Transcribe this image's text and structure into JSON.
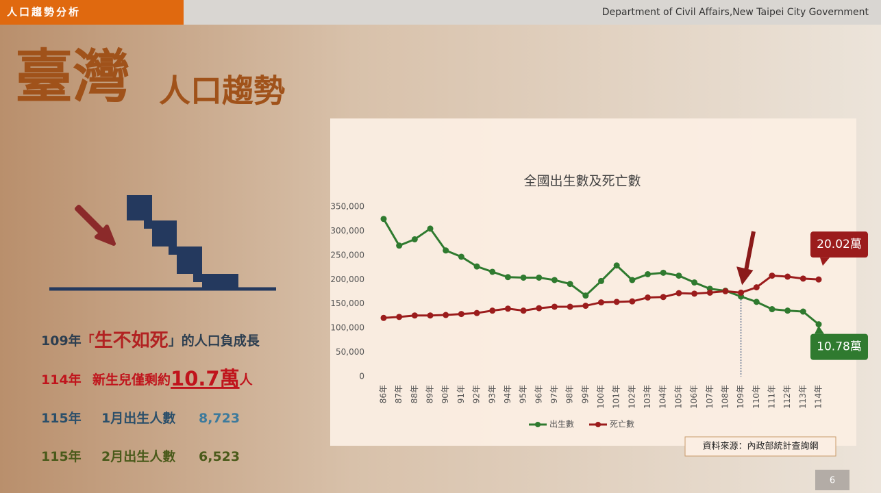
{
  "header": {
    "tag": "人口趨勢分析",
    "organization": "Department of Civil Affairs,New Taipei City Government"
  },
  "title": {
    "main": "臺灣",
    "sub": "人口趨勢"
  },
  "notes": [
    {
      "year": "109年",
      "open": "「",
      "highlight": "生不如死",
      "rest": "」的人口負成長"
    },
    {
      "year": "114年",
      "text": "新生兒僅剩約",
      "highlight": "10.7萬",
      "rest": "人"
    },
    {
      "year": "115年",
      "text": "1月出生人數",
      "number": "8,723"
    },
    {
      "year": "115年",
      "text": "2月出生人數",
      "number": "6,523"
    }
  ],
  "source": "資料來源：內政部統計查詢網",
  "page_number": "6",
  "chart_data": {
    "type": "line",
    "title": "全國出生數及死亡數",
    "categories": [
      "86年",
      "87年",
      "88年",
      "89年",
      "90年",
      "91年",
      "92年",
      "93年",
      "94年",
      "95年",
      "96年",
      "97年",
      "98年",
      "99年",
      "100年",
      "101年",
      "102年",
      "103年",
      "104年",
      "105年",
      "106年",
      "107年",
      "108年",
      "109年",
      "110年",
      "111年",
      "112年",
      "113年",
      "114年"
    ],
    "series": [
      {
        "name": "出生數",
        "color": "#2f7a2f",
        "values": [
          325000,
          270000,
          283000,
          305000,
          260000,
          247000,
          227000,
          216000,
          205000,
          204000,
          204000,
          199000,
          191000,
          167000,
          197000,
          229000,
          199000,
          211000,
          214000,
          208000,
          194000,
          181000,
          177000,
          165000,
          154000,
          139000,
          136000,
          134000,
          107800
        ],
        "value_labels": [
          null,
          null,
          null,
          null,
          null,
          null,
          null,
          null,
          null,
          null,
          null,
          null,
          null,
          null,
          null,
          null,
          null,
          null,
          null,
          null,
          null,
          null,
          null,
          null,
          null,
          null,
          null,
          null,
          "10.78萬"
        ]
      },
      {
        "name": "死亡數",
        "color": "#9b1c1c",
        "values": [
          121000,
          123000,
          126000,
          126000,
          127000,
          129000,
          131000,
          136000,
          140000,
          136000,
          141000,
          144000,
          144000,
          146000,
          153000,
          154000,
          155000,
          163000,
          164000,
          172000,
          171000,
          173000,
          176000,
          173000,
          184000,
          208000,
          206000,
          202000,
          200200
        ],
        "value_labels": [
          null,
          null,
          null,
          null,
          null,
          null,
          null,
          null,
          null,
          null,
          null,
          null,
          null,
          null,
          null,
          null,
          null,
          null,
          null,
          null,
          null,
          null,
          null,
          null,
          null,
          null,
          null,
          null,
          "20.02萬"
        ]
      }
    ],
    "ylim": [
      0,
      350000
    ],
    "yticks": [
      0,
      {
        "value": 50000,
        "label": "50,000"
      },
      {
        "value": 100000,
        "label": "100,000"
      },
      {
        "value": 150000,
        "label": "150,000"
      },
      {
        "value": 200000,
        "label": "200,000"
      },
      {
        "value": 250000,
        "label": "250,000"
      },
      {
        "value": 300000,
        "label": "300,000"
      },
      {
        "value": 350000,
        "label": "350,000"
      }
    ],
    "grid": false,
    "legend": "bottom"
  }
}
